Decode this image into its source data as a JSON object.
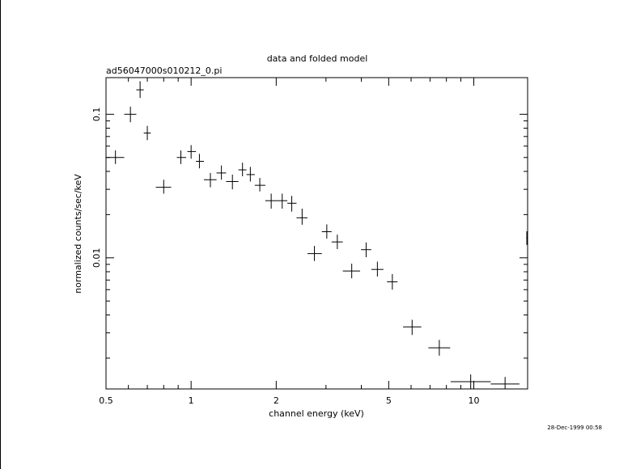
{
  "chart_data": {
    "type": "scatter",
    "title": "data and folded model",
    "subtitle": "ad56047000s010212_0.pi",
    "xlabel": "channel energy (keV)",
    "ylabel": "normalized counts/sec/keV",
    "x_scale": "log",
    "y_scale": "log",
    "xlim": [
      0.5,
      15.5
    ],
    "ylim": [
      0.00122,
      0.18
    ],
    "grid": false,
    "x_ticks": [
      "0.5",
      "1",
      "2",
      "5",
      "10"
    ],
    "y_ticks": [
      "0.1",
      "0.01"
    ],
    "series": [
      {
        "points": [
          {
            "x": 0.54,
            "xlo": 0.5,
            "xhi": 0.58,
            "y": 0.05,
            "ylo": 0.045,
            "yhi": 0.056
          },
          {
            "x": 0.61,
            "xlo": 0.58,
            "xhi": 0.64,
            "y": 0.1,
            "ylo": 0.088,
            "yhi": 0.113
          },
          {
            "x": 0.66,
            "xlo": 0.64,
            "xhi": 0.68,
            "y": 0.148,
            "ylo": 0.13,
            "yhi": 0.17
          },
          {
            "x": 0.7,
            "xlo": 0.68,
            "xhi": 0.72,
            "y": 0.074,
            "ylo": 0.066,
            "yhi": 0.083
          },
          {
            "x": 0.8,
            "xlo": 0.75,
            "xhi": 0.85,
            "y": 0.031,
            "ylo": 0.028,
            "yhi": 0.035
          },
          {
            "x": 0.92,
            "xlo": 0.89,
            "xhi": 0.96,
            "y": 0.05,
            "ylo": 0.045,
            "yhi": 0.056
          },
          {
            "x": 1.0,
            "xlo": 0.97,
            "xhi": 1.04,
            "y": 0.055,
            "ylo": 0.049,
            "yhi": 0.061
          },
          {
            "x": 1.07,
            "xlo": 1.04,
            "xhi": 1.11,
            "y": 0.047,
            "ylo": 0.042,
            "yhi": 0.053
          },
          {
            "x": 1.17,
            "xlo": 1.11,
            "xhi": 1.23,
            "y": 0.035,
            "ylo": 0.031,
            "yhi": 0.039
          },
          {
            "x": 1.28,
            "xlo": 1.23,
            "xhi": 1.33,
            "y": 0.039,
            "ylo": 0.035,
            "yhi": 0.044
          },
          {
            "x": 1.4,
            "xlo": 1.33,
            "xhi": 1.47,
            "y": 0.034,
            "ylo": 0.03,
            "yhi": 0.038
          },
          {
            "x": 1.52,
            "xlo": 1.47,
            "xhi": 1.57,
            "y": 0.041,
            "ylo": 0.037,
            "yhi": 0.046
          },
          {
            "x": 1.62,
            "xlo": 1.57,
            "xhi": 1.68,
            "y": 0.038,
            "ylo": 0.034,
            "yhi": 0.043
          },
          {
            "x": 1.75,
            "xlo": 1.68,
            "xhi": 1.83,
            "y": 0.032,
            "ylo": 0.029,
            "yhi": 0.036
          },
          {
            "x": 1.92,
            "xlo": 1.83,
            "xhi": 2.02,
            "y": 0.025,
            "ylo": 0.022,
            "yhi": 0.028
          },
          {
            "x": 2.1,
            "xlo": 2.02,
            "xhi": 2.19,
            "y": 0.025,
            "ylo": 0.022,
            "yhi": 0.028
          },
          {
            "x": 2.27,
            "xlo": 2.19,
            "xhi": 2.36,
            "y": 0.024,
            "ylo": 0.021,
            "yhi": 0.027
          },
          {
            "x": 2.47,
            "xlo": 2.36,
            "xhi": 2.58,
            "y": 0.019,
            "ylo": 0.017,
            "yhi": 0.022
          },
          {
            "x": 2.73,
            "xlo": 2.58,
            "xhi": 2.9,
            "y": 0.0107,
            "ylo": 0.0095,
            "yhi": 0.0121
          },
          {
            "x": 3.02,
            "xlo": 2.9,
            "xhi": 3.14,
            "y": 0.0152,
            "ylo": 0.0136,
            "yhi": 0.0171
          },
          {
            "x": 3.29,
            "xlo": 3.14,
            "xhi": 3.44,
            "y": 0.0129,
            "ylo": 0.0115,
            "yhi": 0.0145
          },
          {
            "x": 3.7,
            "xlo": 3.44,
            "xhi": 3.96,
            "y": 0.0081,
            "ylo": 0.0072,
            "yhi": 0.0091
          },
          {
            "x": 4.16,
            "xlo": 3.99,
            "xhi": 4.34,
            "y": 0.0114,
            "ylo": 0.0101,
            "yhi": 0.0128
          },
          {
            "x": 4.56,
            "xlo": 4.34,
            "xhi": 4.79,
            "y": 0.0083,
            "ylo": 0.0074,
            "yhi": 0.0094
          },
          {
            "x": 5.15,
            "xlo": 4.93,
            "xhi": 5.37,
            "y": 0.0068,
            "ylo": 0.006,
            "yhi": 0.0077
          },
          {
            "x": 6.05,
            "xlo": 5.62,
            "xhi": 6.52,
            "y": 0.0033,
            "ylo": 0.0029,
            "yhi": 0.0037
          },
          {
            "x": 7.55,
            "xlo": 6.91,
            "xhi": 8.25,
            "y": 0.00236,
            "ylo": 0.00208,
            "yhi": 0.00268
          },
          {
            "x": 9.75,
            "xlo": 8.28,
            "xhi": 11.48,
            "y": 0.00137,
            "ylo": 0.00122,
            "yhi": 0.00154
          },
          {
            "x": 12.9,
            "xlo": 11.48,
            "xhi": 14.5,
            "y": 0.00132,
            "ylo": 0.00122,
            "yhi": 0.00148
          },
          {
            "x": 15.4,
            "xlo": 15.33,
            "xhi": 15.47,
            "y": 0.0137,
            "ylo": 0.0123,
            "yhi": 0.0153
          }
        ]
      }
    ]
  },
  "footer": {
    "timestamp": "28-Dec-1999 00:58"
  }
}
